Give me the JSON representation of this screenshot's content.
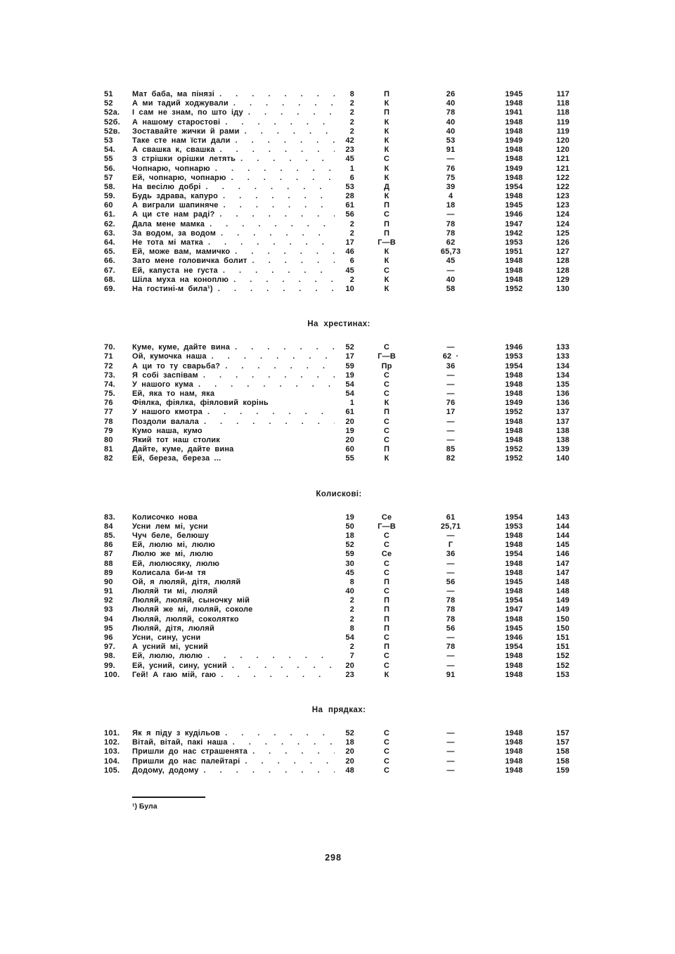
{
  "index": {
    "sections": [
      {
        "heading": "",
        "rows": [
          {
            "no": "51",
            "title": "Мат баба, ма пінязі",
            "dots": true,
            "a": "8",
            "b": "П",
            "c": "26",
            "year": "1945",
            "page": "117"
          },
          {
            "no": "52",
            "title": "А ми тадий ходжували",
            "dots": true,
            "a": "2",
            "b": "К",
            "c": "40",
            "year": "1948",
            "page": "118"
          },
          {
            "no": "52а.",
            "title": "І сам не знам, по што іду",
            "dots": true,
            "a": "2",
            "b": "П",
            "c": "78",
            "year": "1941",
            "page": "118"
          },
          {
            "no": "52б.",
            "title": "А нашому старостові",
            "dots": true,
            "a": "2",
            "b": "К",
            "c": "40",
            "year": "1948",
            "page": "119"
          },
          {
            "no": "52в.",
            "title": "Зоставайте жички й рами",
            "dots": true,
            "a": "2",
            "b": "К",
            "c": "40",
            "year": "1948",
            "page": "119"
          },
          {
            "no": "53",
            "title": "Таке сте нам їсти дали",
            "dots": true,
            "a": "42",
            "b": "К",
            "c": "53",
            "year": "1949",
            "page": "120"
          },
          {
            "no": "54.",
            "title": "А свашка к, свашка",
            "dots": true,
            "a": "23",
            "b": "К",
            "c": "91",
            "year": "1948",
            "page": "120"
          },
          {
            "no": "55",
            "title": "З стрішки орішки летять",
            "dots": true,
            "a": "45",
            "b": "С",
            "c": "—",
            "year": "1948",
            "page": "121"
          },
          {
            "no": "56.",
            "title": "Чопнарю, чопнарю",
            "dots": true,
            "a": "1",
            "b": "К",
            "c": "76",
            "year": "1949",
            "page": "121"
          },
          {
            "no": "57",
            "title": "Ей, чопнарю, чопнарю",
            "dots": true,
            "a": "6",
            "b": "К",
            "c": "75",
            "year": "1948",
            "page": "122"
          },
          {
            "no": "58.",
            "title": "На весілю добрі",
            "dots": true,
            "a": "53",
            "b": "Д",
            "c": "39",
            "year": "1954",
            "page": "122"
          },
          {
            "no": "59.",
            "title": "Будь здрава, капуро",
            "dots": true,
            "a": "28",
            "b": "К",
            "c": "4",
            "year": "1948",
            "page": "123"
          },
          {
            "no": "60",
            "title": "А виграли шапиняче",
            "dots": true,
            "a": "61",
            "b": "П",
            "c": "18",
            "year": "1945",
            "page": "123"
          },
          {
            "no": "61.",
            "title": "А ци сте нам раді?",
            "dots": true,
            "a": "56",
            "b": "С",
            "c": "—",
            "year": "1946",
            "page": "124"
          },
          {
            "no": "62.",
            "title": "Дала мене мамка",
            "dots": true,
            "a": "2",
            "b": "П",
            "c": "78",
            "year": "1947",
            "page": "124"
          },
          {
            "no": "63.",
            "title": "За водом, за водом",
            "dots": true,
            "a": "2",
            "b": "П",
            "c": "78",
            "year": "1942",
            "page": "125"
          },
          {
            "no": "64.",
            "title": "Не тота мі матка",
            "dots": true,
            "a": "17",
            "b": "Г—В",
            "c": "62",
            "year": "1953",
            "page": "126"
          },
          {
            "no": "65.",
            "title": "Ей, може вам, мамичко",
            "dots": true,
            "a": "46",
            "b": "К",
            "c": "65,73",
            "year": "1951",
            "page": "127"
          },
          {
            "no": "66.",
            "title": "Зато мене головичка болит",
            "dots": true,
            "a": "6",
            "b": "К",
            "c": "45",
            "year": "1948",
            "page": "128"
          },
          {
            "no": "67.",
            "title": "Ей, капуста не густа",
            "dots": true,
            "a": "45",
            "b": "С",
            "c": "—",
            "year": "1948",
            "page": "128"
          },
          {
            "no": "68.",
            "title": "Шіла муха на коноплю",
            "dots": true,
            "a": "2",
            "b": "К",
            "c": "40",
            "year": "1948",
            "page": "129"
          },
          {
            "no": "69.",
            "title": "На гостині-м била¹)",
            "dots": true,
            "a": "10",
            "b": "К",
            "c": "58",
            "year": "1952",
            "page": "130"
          }
        ]
      },
      {
        "heading": "На хрестинах:",
        "rows": [
          {
            "no": "70.",
            "title": "Куме, куме, дайте вина",
            "dots": true,
            "a": "52",
            "b": "С",
            "c": "—",
            "year": "1946",
            "page": "133"
          },
          {
            "no": "71",
            "title": "Ой, кумочка наша",
            "dots": true,
            "a": "17",
            "b": "Г—В",
            "c": "62 ·",
            "year": "1953",
            "page": "133"
          },
          {
            "no": "72",
            "title": "А ци то ту сварьба?",
            "dots": true,
            "a": "59",
            "b": "Пр",
            "c": "36",
            "year": "1954",
            "page": "134"
          },
          {
            "no": "73.",
            "title": "Я собі заспівам",
            "dots": true,
            "a": "19",
            "b": "С",
            "c": "—",
            "year": "1948",
            "page": "134"
          },
          {
            "no": "74.",
            "title": "У нашого кума",
            "dots": true,
            "a": "54",
            "b": "С",
            "c": "—",
            "year": "1948",
            "page": "135"
          },
          {
            "no": "75.",
            "title": "Ей, яка то нам, яка",
            "dots": false,
            "a": "54",
            "b": "С",
            "c": "—",
            "year": "1948",
            "page": "136"
          },
          {
            "no": "76",
            "title": "Фіялка, фіялка, фіяловий корінь",
            "dots": false,
            "a": "1",
            "b": "К",
            "c": "76",
            "year": "1949",
            "page": "136"
          },
          {
            "no": "77",
            "title": "У нашого кмотра",
            "dots": true,
            "a": "61",
            "b": "П",
            "c": "17",
            "year": "1952",
            "page": "137"
          },
          {
            "no": "78",
            "title": "Поздоли валала",
            "dots": true,
            "a": "20",
            "b": "С",
            "c": "—",
            "year": "1948",
            "page": "137"
          },
          {
            "no": "79",
            "title": "Кумо наша, кумо",
            "dots": false,
            "a": "19",
            "b": "С",
            "c": "—",
            "year": "1948",
            "page": "138"
          },
          {
            "no": "80",
            "title": "Який тот наш столик",
            "dots": false,
            "a": "20",
            "b": "С",
            "c": "—",
            "year": "1948",
            "page": "138"
          },
          {
            "no": "81",
            "title": "Дайте, куме, дайте вина",
            "dots": false,
            "a": "60",
            "b": "П",
            "c": "85",
            "year": "1952",
            "page": "139"
          },
          {
            "no": "82",
            "title": "Ей, береза, береза ...",
            "dots": false,
            "a": "55",
            "b": "К",
            "c": "82",
            "year": "1952",
            "page": "140"
          }
        ]
      },
      {
        "heading": "Колискові:",
        "rows": [
          {
            "no": "83.",
            "title": "Колисочко нова",
            "dots": false,
            "a": "19",
            "b": "Се",
            "c": "61",
            "year": "1954",
            "page": "143"
          },
          {
            "no": "84",
            "title": "Усни лем мі, усни",
            "dots": false,
            "a": "50",
            "b": "Г—В",
            "c": "25,71",
            "year": "1953",
            "page": "144"
          },
          {
            "no": "85.",
            "title": "Чуч беле, белюшу",
            "dots": false,
            "a": "18",
            "b": "С",
            "c": "—",
            "year": "1948",
            "page": "144"
          },
          {
            "no": "86",
            "title": "Ей, люлю мі, люлю",
            "dots": false,
            "a": "52",
            "b": "С",
            "c": "Г",
            "year": "1948",
            "page": "145"
          },
          {
            "no": "87",
            "title": "Люлю же мі, люлю",
            "dots": false,
            "a": "59",
            "b": "Се",
            "c": "36",
            "year": "1954",
            "page": "146"
          },
          {
            "no": "88",
            "title": "Ей, люлюсяку, люлю",
            "dots": false,
            "a": "30",
            "b": "С",
            "c": "—",
            "year": "1948",
            "page": "147"
          },
          {
            "no": "89",
            "title": "Колисала би-м тя",
            "dots": false,
            "a": "45",
            "b": "С",
            "c": "—",
            "year": "1948",
            "page": "147"
          },
          {
            "no": "90",
            "title": "Ой, я люляй, дітя, люляй",
            "dots": false,
            "a": "8",
            "b": "П",
            "c": "56",
            "year": "1945",
            "page": "148"
          },
          {
            "no": "91",
            "title": "Люляй ти мі, люляй",
            "dots": false,
            "a": "40",
            "b": "С",
            "c": "—",
            "year": "1948",
            "page": "148"
          },
          {
            "no": "92",
            "title": "Люляй, люляй, сыночку мій",
            "dots": false,
            "a": "2",
            "b": "П",
            "c": "78",
            "year": "1954",
            "page": "149"
          },
          {
            "no": "93",
            "title": "Люляй же мі, люляй, соколе",
            "dots": false,
            "a": "2",
            "b": "П",
            "c": "78",
            "year": "1947",
            "page": "149"
          },
          {
            "no": "94",
            "title": "Люляй, люляй, соколятко",
            "dots": false,
            "a": "2",
            "b": "П",
            "c": "78",
            "year": "1948",
            "page": "150"
          },
          {
            "no": "95",
            "title": "Люляй, дітя, люляй",
            "dots": false,
            "a": "8",
            "b": "П",
            "c": "56",
            "year": "1945",
            "page": "150"
          },
          {
            "no": "96",
            "title": "Усни, сину, усни",
            "dots": false,
            "a": "54",
            "b": "С",
            "c": "—",
            "year": "1946",
            "page": "151"
          },
          {
            "no": "97.",
            "title": "А усний мі, усний",
            "dots": false,
            "a": "2",
            "b": "П",
            "c": "78",
            "year": "1954",
            "page": "151"
          },
          {
            "no": "98.",
            "title": "Ей, люлю, люлю",
            "dots": true,
            "a": "7",
            "b": "С",
            "c": "—",
            "year": "1948",
            "page": "152"
          },
          {
            "no": "99.",
            "title": "Ей, усний, сину, усний",
            "dots": true,
            "a": "20",
            "b": "С",
            "c": "—",
            "year": "1948",
            "page": "152"
          },
          {
            "no": "100.",
            "title": "Гей! А гаю мій, гаю",
            "dots": true,
            "a": "23",
            "b": "К",
            "c": "91",
            "year": "1948",
            "page": "153"
          }
        ]
      },
      {
        "heading": "На прядках:",
        "rows": [
          {
            "no": "101.",
            "title": "Як я піду з кудільов",
            "dots": true,
            "a": "52",
            "b": "С",
            "c": "—",
            "year": "1948",
            "page": "157"
          },
          {
            "no": "102.",
            "title": "Вітай, вітай, пакі наша",
            "dots": true,
            "a": "18",
            "b": "С",
            "c": "—",
            "year": "1948",
            "page": "157"
          },
          {
            "no": "103.",
            "title": "Пришли до нас страшенята",
            "dots": true,
            "a": "20",
            "b": "С",
            "c": "—",
            "year": "1948",
            "page": "158"
          },
          {
            "no": "104.",
            "title": "Пришли до нас палейтарі",
            "dots": true,
            "a": "20",
            "b": "С",
            "c": "—",
            "year": "1948",
            "page": "158"
          },
          {
            "no": "105.",
            "title": "Додому, додому",
            "dots": true,
            "a": "48",
            "b": "С",
            "c": "—",
            "year": "1948",
            "page": "159"
          }
        ]
      }
    ],
    "footnote": "¹) Була",
    "page_number": "298"
  }
}
